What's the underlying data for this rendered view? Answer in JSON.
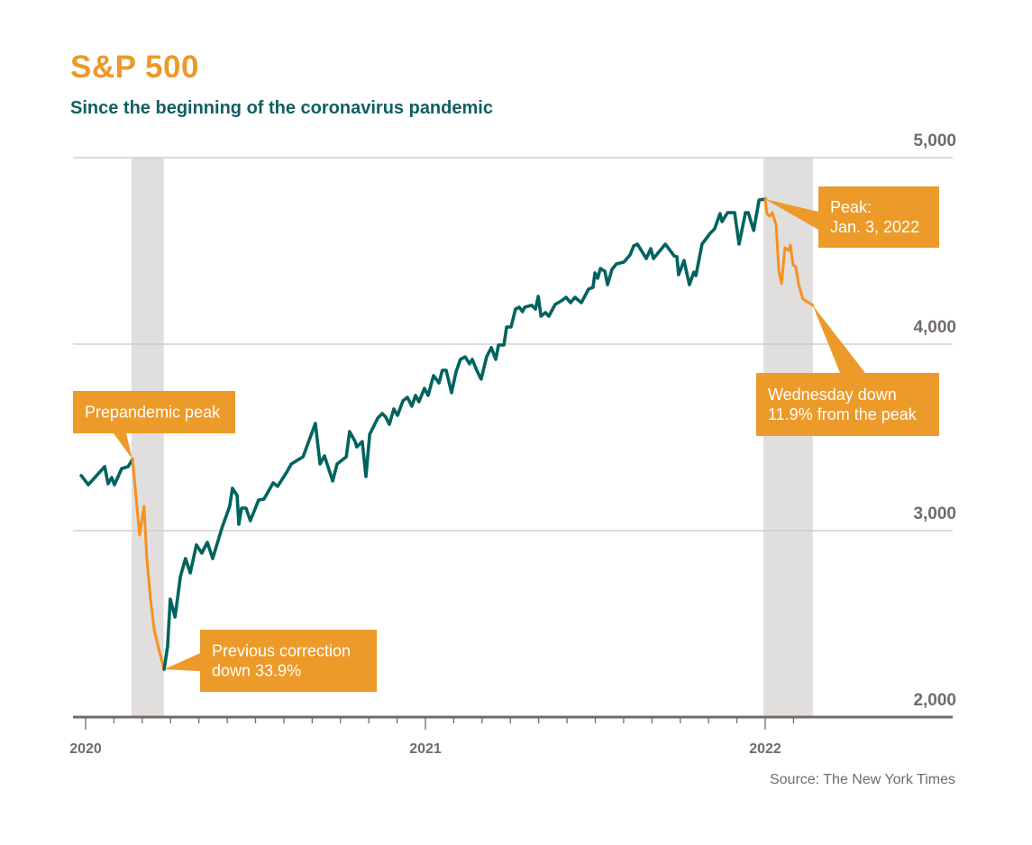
{
  "header": {
    "title": "S&P 500",
    "subtitle": "Since the beginning of the coronavirus pandemic"
  },
  "footer": {
    "source": "Source: The New York Times"
  },
  "colors": {
    "title": "#ec9a29",
    "main_line": "#00635f",
    "correction_line": "#f7901e",
    "callout_fill": "#ec9a29",
    "shade": "#e0dfdd",
    "grid": "#c9c6c4",
    "axis": "#726b68"
  },
  "chart_data": {
    "type": "line",
    "title": "S&P 500",
    "subtitle": "Since the beginning of the coronavirus pandemic",
    "xlabel": "",
    "ylabel": "",
    "x_unit": "fractional year",
    "xlim": [
      2019.97,
      2022.55
    ],
    "ylim": [
      2000,
      5000
    ],
    "y_ticks": [
      {
        "value": 5000,
        "label": "5,000"
      },
      {
        "value": 4000,
        "label": "4,000"
      },
      {
        "value": 3000,
        "label": "3,000"
      },
      {
        "value": 2000,
        "label": "2,000"
      }
    ],
    "x_ticks": [
      {
        "value": 2020,
        "label": "2020"
      },
      {
        "value": 2021,
        "label": "2021"
      },
      {
        "value": 2022,
        "label": "2022"
      }
    ],
    "x_minor_ticks_per_year": 12,
    "y_axis_side": "right",
    "grid": true,
    "shaded_periods": [
      {
        "name": "2020-correction",
        "start": 2020.135,
        "end": 2020.23
      },
      {
        "name": "2022-correction",
        "start": 2021.995,
        "end": 2022.14
      }
    ],
    "series": [
      {
        "name": "S&P 500",
        "style": "main",
        "points": [
          [
            2019.987,
            3295
          ],
          [
            2020.008,
            3246
          ],
          [
            2020.056,
            3343
          ],
          [
            2020.066,
            3251
          ],
          [
            2020.077,
            3285
          ],
          [
            2020.085,
            3246
          ],
          [
            2020.106,
            3333
          ],
          [
            2020.125,
            3343
          ],
          [
            2020.138,
            3382
          ]
        ]
      },
      {
        "name": "Correction 2020",
        "style": "correction",
        "points": [
          [
            2020.138,
            3382
          ],
          [
            2020.159,
            2976
          ],
          [
            2020.172,
            3130
          ],
          [
            2020.18,
            2850
          ],
          [
            2020.191,
            2633
          ],
          [
            2020.202,
            2464
          ],
          [
            2020.215,
            2367
          ],
          [
            2020.231,
            2256
          ]
        ]
      },
      {
        "name": "S&P 500",
        "style": "main",
        "points": [
          [
            2020.231,
            2256
          ],
          [
            2020.241,
            2377
          ],
          [
            2020.249,
            2633
          ],
          [
            2020.263,
            2536
          ],
          [
            2020.279,
            2754
          ],
          [
            2020.294,
            2850
          ],
          [
            2020.308,
            2773
          ],
          [
            2020.326,
            2923
          ],
          [
            2020.342,
            2879
          ],
          [
            2020.358,
            2937
          ],
          [
            2020.374,
            2850
          ],
          [
            2020.401,
            3014
          ],
          [
            2020.424,
            3130
          ],
          [
            2020.432,
            3227
          ],
          [
            2020.446,
            3188
          ],
          [
            2020.451,
            3034
          ],
          [
            2020.459,
            3121
          ],
          [
            2020.472,
            3121
          ],
          [
            2020.485,
            3053
          ],
          [
            2020.509,
            3164
          ],
          [
            2020.525,
            3169
          ],
          [
            2020.552,
            3256
          ],
          [
            2020.565,
            3237
          ],
          [
            2020.592,
            3314
          ],
          [
            2020.605,
            3357
          ],
          [
            2020.64,
            3396
          ],
          [
            2020.676,
            3575
          ],
          [
            2020.69,
            3357
          ],
          [
            2020.703,
            3401
          ],
          [
            2020.727,
            3266
          ],
          [
            2020.74,
            3357
          ],
          [
            2020.767,
            3396
          ],
          [
            2020.777,
            3531
          ],
          [
            2020.793,
            3478
          ],
          [
            2020.798,
            3449
          ],
          [
            2020.814,
            3478
          ],
          [
            2020.825,
            3290
          ],
          [
            2020.836,
            3517
          ],
          [
            2020.86,
            3604
          ],
          [
            2020.873,
            3628
          ],
          [
            2020.883,
            3609
          ],
          [
            2020.894,
            3570
          ],
          [
            2020.907,
            3652
          ],
          [
            2020.918,
            3618
          ],
          [
            2020.934,
            3696
          ],
          [
            2020.947,
            3715
          ],
          [
            2020.96,
            3667
          ],
          [
            2020.971,
            3725
          ],
          [
            2020.981,
            3691
          ],
          [
            2020.997,
            3763
          ],
          [
            2021.008,
            3725
          ],
          [
            2021.024,
            3831
          ],
          [
            2021.04,
            3792
          ],
          [
            2021.05,
            3860
          ],
          [
            2021.061,
            3860
          ],
          [
            2021.077,
            3739
          ],
          [
            2021.09,
            3850
          ],
          [
            2021.103,
            3918
          ],
          [
            2021.117,
            3932
          ],
          [
            2021.13,
            3894
          ],
          [
            2021.138,
            3918
          ],
          [
            2021.151,
            3860
          ],
          [
            2021.164,
            3812
          ],
          [
            2021.18,
            3932
          ],
          [
            2021.194,
            3981
          ],
          [
            2021.207,
            3918
          ],
          [
            2021.215,
            3995
          ],
          [
            2021.231,
            3995
          ],
          [
            2021.239,
            4092
          ],
          [
            2021.252,
            4092
          ],
          [
            2021.265,
            4188
          ],
          [
            2021.276,
            4198
          ],
          [
            2021.286,
            4174
          ],
          [
            2021.292,
            4198
          ],
          [
            2021.313,
            4208
          ],
          [
            2021.324,
            4188
          ],
          [
            2021.332,
            4256
          ],
          [
            2021.34,
            4150
          ],
          [
            2021.353,
            4169
          ],
          [
            2021.363,
            4150
          ],
          [
            2021.382,
            4213
          ],
          [
            2021.4,
            4232
          ],
          [
            2021.414,
            4251
          ],
          [
            2021.427,
            4222
          ],
          [
            2021.44,
            4251
          ],
          [
            2021.459,
            4222
          ],
          [
            2021.48,
            4295
          ],
          [
            2021.493,
            4304
          ],
          [
            2021.499,
            4382
          ],
          [
            2021.507,
            4353
          ],
          [
            2021.515,
            4406
          ],
          [
            2021.528,
            4391
          ],
          [
            2021.536,
            4319
          ],
          [
            2021.549,
            4401
          ],
          [
            2021.562,
            4430
          ],
          [
            2021.584,
            4440
          ],
          [
            2021.602,
            4478
          ],
          [
            2021.613,
            4527
          ],
          [
            2021.624,
            4536
          ],
          [
            2021.65,
            4459
          ],
          [
            2021.663,
            4512
          ],
          [
            2021.671,
            4459
          ],
          [
            2021.706,
            4536
          ],
          [
            2021.732,
            4473
          ],
          [
            2021.74,
            4469
          ],
          [
            2021.745,
            4372
          ],
          [
            2021.761,
            4449
          ],
          [
            2021.777,
            4319
          ],
          [
            2021.79,
            4386
          ],
          [
            2021.796,
            4367
          ],
          [
            2021.814,
            4536
          ],
          [
            2021.838,
            4594
          ],
          [
            2021.851,
            4618
          ],
          [
            2021.867,
            4700
          ],
          [
            2021.873,
            4657
          ],
          [
            2021.889,
            4705
          ],
          [
            2021.91,
            4705
          ],
          [
            2021.923,
            4536
          ],
          [
            2021.942,
            4705
          ],
          [
            2021.95,
            4705
          ],
          [
            2021.966,
            4609
          ],
          [
            2021.982,
            4773
          ],
          [
            2022.0,
            4778
          ]
        ]
      },
      {
        "name": "Correction 2022",
        "style": "correction",
        "points": [
          [
            2022.0,
            4778
          ],
          [
            2022.005,
            4700
          ],
          [
            2022.013,
            4686
          ],
          [
            2022.021,
            4705
          ],
          [
            2022.032,
            4638
          ],
          [
            2022.04,
            4396
          ],
          [
            2022.048,
            4324
          ],
          [
            2022.058,
            4517
          ],
          [
            2022.069,
            4502
          ],
          [
            2022.074,
            4531
          ],
          [
            2022.082,
            4425
          ],
          [
            2022.09,
            4415
          ],
          [
            2022.098,
            4324
          ],
          [
            2022.111,
            4242
          ],
          [
            2022.14,
            4208
          ]
        ]
      }
    ],
    "annotations": [
      {
        "name": "prepandemic-peak",
        "text": [
          "Prepandemic peak"
        ],
        "x": 2020.138,
        "y": 3382
      },
      {
        "name": "previous-correction",
        "text": [
          "Previous correction",
          "down 33.9%"
        ],
        "x": 2020.231,
        "y": 2256
      },
      {
        "name": "peak-2022",
        "text": [
          "Peak:",
          "Jan. 3, 2022"
        ],
        "x": 2022.0,
        "y": 4778
      },
      {
        "name": "wednesday-down",
        "text": [
          "Wednesday down",
          "11.9% from the peak"
        ],
        "x": 2022.14,
        "y": 4208
      }
    ]
  }
}
